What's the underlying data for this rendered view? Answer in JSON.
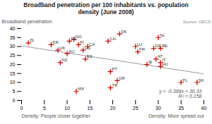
{
  "chart_data": {
    "type": "scatter",
    "title": "Broadband penetration per 100 inhabitants vs. population\ndensity (June 2008)",
    "source": "Source: OECD",
    "ylabel": "Broadband penetration",
    "xlabel_left": "Density: People closer together",
    "xlabel_right": "Density: More spread out",
    "xlim": [
      0,
      40
    ],
    "ylim": [
      0,
      40
    ],
    "xticks": [
      0,
      5,
      10,
      15,
      20,
      25,
      30,
      35,
      40
    ],
    "yticks": [
      0,
      5,
      10,
      15,
      20,
      25,
      30,
      35,
      40
    ],
    "grid": false,
    "labels": [
      "IS",
      "KR",
      "UK",
      "NZ",
      "AU",
      "SE",
      "NO",
      "FI",
      "US",
      "CA",
      "ES",
      "MX",
      "CH",
      "PT",
      "TR",
      "GR",
      "DK",
      "LU",
      "FR",
      "IE",
      "NL",
      "DE",
      "BE",
      "AT",
      "IT",
      "HU",
      "PL",
      "SK"
    ],
    "x": [
      1.5,
      6.5,
      8.0,
      8.5,
      10.0,
      10.5,
      11.5,
      12.5,
      13.5,
      14.5,
      14.0,
      12.0,
      19.0,
      19.5,
      19.5,
      21.0,
      21.5,
      25.0,
      25.5,
      27.5,
      30.0,
      29.0,
      30.5,
      29.5,
      30.5,
      30.5,
      35.0,
      38.5
    ],
    "values": [
      32,
      31,
      28,
      21,
      26,
      33,
      34,
      31,
      28,
      30,
      23,
      5,
      33,
      16,
      7,
      11,
      37,
      30,
      27,
      20,
      35,
      29,
      29,
      23,
      21,
      19,
      10,
      10
    ],
    "color": "#cc0000",
    "marker": "plus",
    "trend_line": {
      "x": [
        0,
        40
      ],
      "values": [
        30.33,
        14.77
      ],
      "color": "#999999"
    },
    "equation": "y = -0.389x + 30.33",
    "r2": "R² = 0.158"
  }
}
